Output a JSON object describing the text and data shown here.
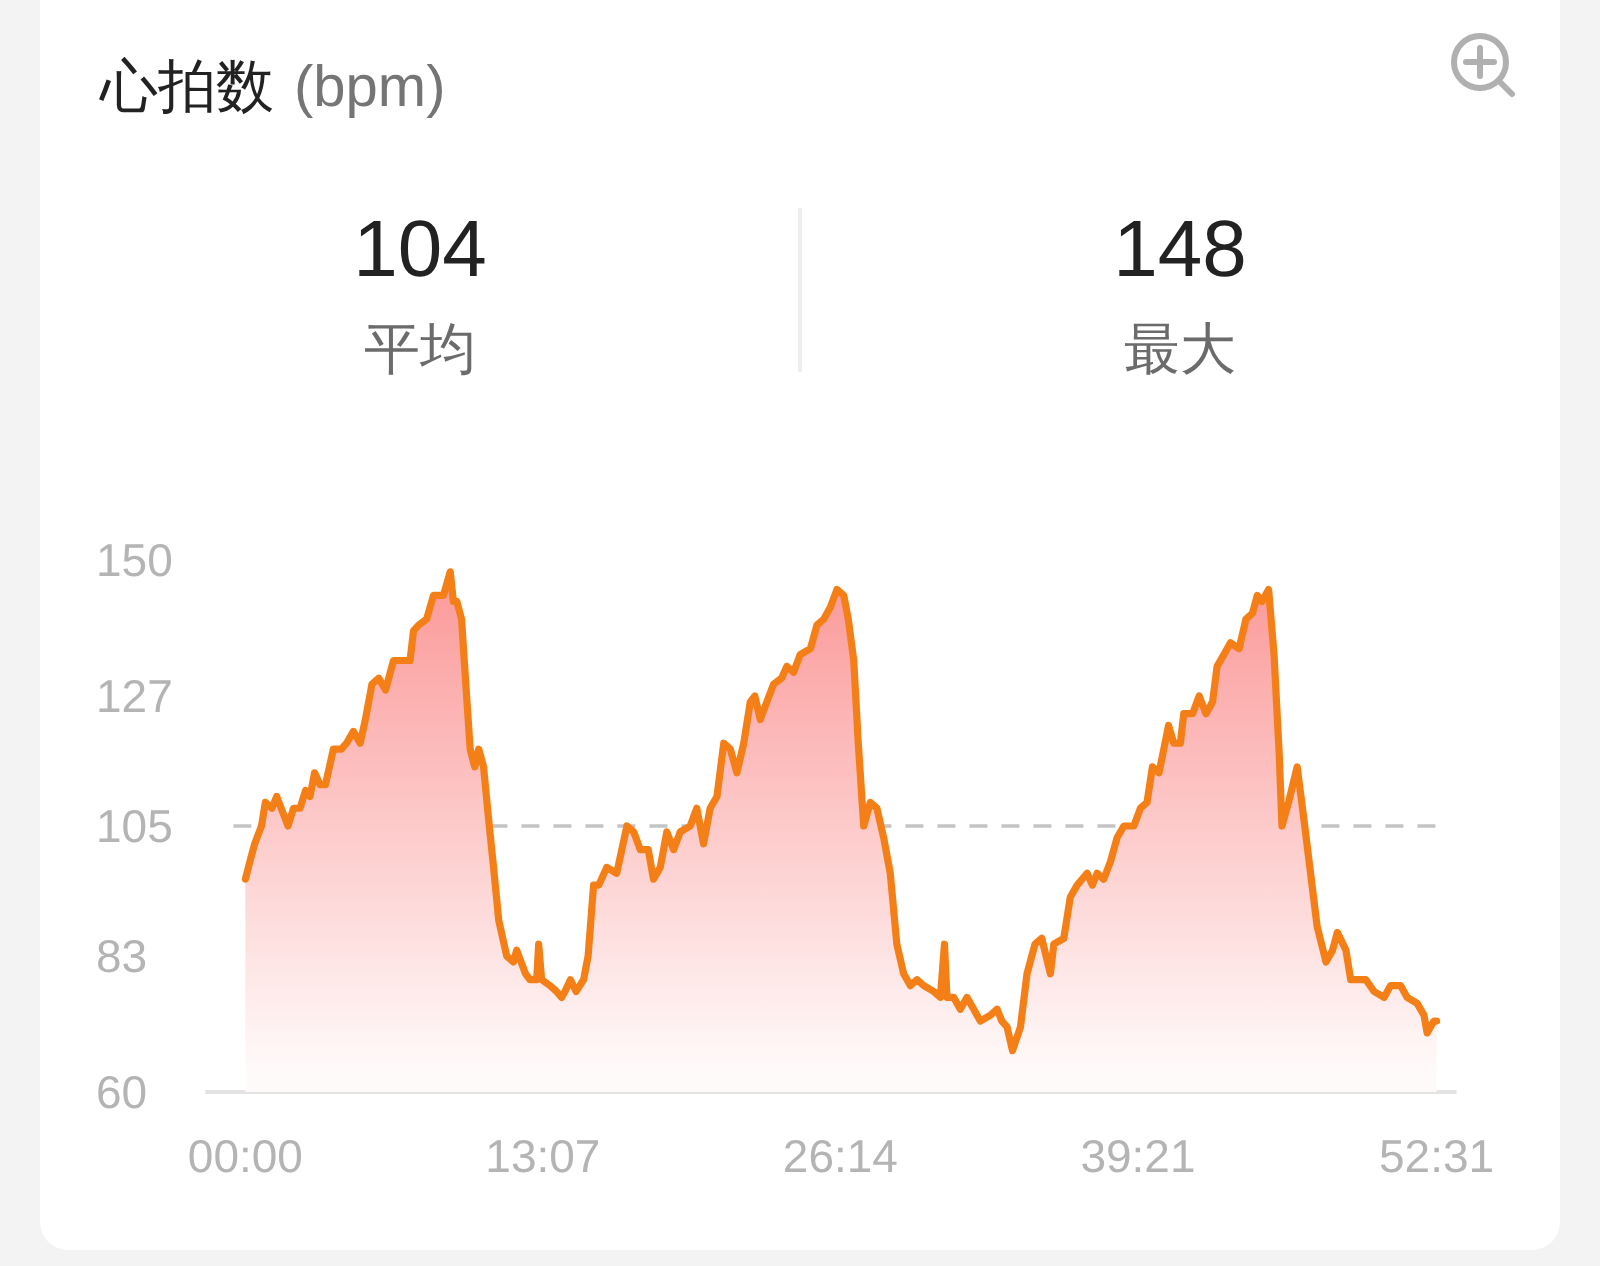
{
  "chart_data": {
    "type": "area",
    "title": "心拍数",
    "subtitle": "(bpm)",
    "annotations": [
      "104",
      "平均",
      "148",
      "最大"
    ],
    "x": [
      0,
      0.2,
      0.41,
      0.71,
      0.88,
      1.17,
      1.38,
      1.68,
      1.88,
      2.12,
      2.41,
      2.65,
      2.85,
      3.05,
      3.29,
      3.53,
      3.88,
      4.23,
      4.46,
      4.76,
      5.06,
      5.29,
      5.58,
      5.88,
      6.18,
      6.53,
      7.26,
      7.41,
      7.64,
      7.99,
      8.29,
      8.73,
      8.88,
      9.03,
      9.17,
      9.32,
      9.53,
      9.7,
      9.91,
      10.11,
      10.29,
      10.5,
      10.7,
      10.94,
      11.17,
      11.52,
      11.82,
      11.96,
      12.35,
      12.55,
      12.84,
      12.93,
      13.06,
      13.43,
      13.72,
      13.94,
      14.09,
      14.33,
      14.58,
      14.91,
      15.11,
      15.35,
      15.58,
      15.93,
      16.37,
      16.82,
      17.12,
      17.41,
      17.76,
      17.99,
      18.29,
      18.58,
      18.88,
      19.17,
      19.61,
      19.9,
      20.2,
      20.49,
      20.79,
      21.09,
      21.38,
      21.67,
      21.97,
      22.26,
      22.46,
      22.7,
      22.99,
      23.29,
      23.64,
      23.87,
      24.17,
      24.46,
      24.91,
      25.2,
      25.5,
      25.79,
      26.08,
      26.38,
      26.58,
      26.82,
      27.02,
      27.26,
      27.55,
      27.84,
      28.14,
      28.43,
      28.72,
      29.02,
      29.32,
      29.61,
      29.91,
      30.35,
      30.64,
      30.82,
      30.93,
      31.23,
      31.52,
      31.81,
      32.11,
      32.4,
      32.85,
      33.14,
      33.35,
      33.58,
      33.82,
      34.17,
      34.46,
      34.81,
      35.11,
      35.49,
      35.64,
      36.08,
      36.37,
      36.67,
      37.11,
      37.34,
      37.55,
      37.84,
      38.14,
      38.43,
      38.73,
      39.17,
      39.46,
      39.75,
      39.99,
      40.28,
      40.49,
      40.7,
      40.93,
      41.22,
      41.37,
      41.76,
      42.05,
      42.35,
      42.64,
      42.84,
      43.14,
      43.43,
      43.81,
      44.11,
      44.4,
      44.61,
      44.82,
      45.11,
      45.35,
      45.58,
      45.7,
      45.99,
      46.37,
      46.67,
      46.96,
      47.25,
      47.64,
      47.93,
      48.14,
      48.52,
      48.73,
      49.02,
      49.4,
      49.76,
      50.2,
      50.49,
      50.93,
      51.22,
      51.66,
      51.96,
      52.1,
      52.4,
      52.517
    ],
    "series": [
      {
        "color": "#f57f17",
        "values": [
          96,
          99,
          102,
          105,
          109,
          108,
          110,
          107,
          105,
          108,
          108,
          111,
          110,
          114,
          112,
          112,
          118,
          118,
          119,
          121,
          119,
          123,
          129,
          130,
          128,
          133,
          133,
          138,
          139,
          140,
          144,
          144,
          146,
          148,
          143,
          143,
          140,
          130,
          118,
          115,
          118,
          115,
          107,
          98,
          89,
          83,
          82,
          84,
          80,
          79,
          79,
          85,
          79,
          78,
          77,
          76,
          77,
          79,
          77,
          79,
          83,
          95,
          95,
          98,
          97,
          105,
          104,
          101,
          101,
          96,
          98,
          104,
          101,
          104,
          105,
          108,
          102,
          108,
          110,
          119,
          118,
          114,
          119,
          126,
          127,
          123,
          126,
          129,
          130,
          132,
          131,
          134,
          135,
          139,
          140,
          142,
          145,
          144,
          140,
          133,
          119,
          105,
          109,
          108,
          103,
          97,
          85,
          80,
          78,
          79,
          78,
          77,
          76,
          85,
          76,
          76,
          74,
          76,
          74,
          72,
          73,
          74,
          72,
          71,
          67,
          71,
          80,
          85,
          86,
          80,
          85,
          86,
          93,
          95,
          97,
          95,
          97,
          96,
          99,
          103,
          105,
          105,
          108,
          109,
          115,
          114,
          118,
          122,
          119,
          119,
          124,
          124,
          127,
          124,
          126,
          132,
          134,
          136,
          135,
          140,
          141,
          144,
          143,
          145,
          134,
          117,
          105,
          109,
          115,
          106,
          97,
          88,
          82,
          84,
          87,
          84,
          79,
          79,
          79,
          77,
          76,
          78,
          78,
          76,
          75,
          73,
          70,
          72,
          72
        ]
      }
    ],
    "xlim": [
      0,
      52.517
    ],
    "xticks": [
      {
        "value": 0,
        "label": "00:00"
      },
      {
        "value": 13.117,
        "label": "13:07"
      },
      {
        "value": 26.233,
        "label": "26:14"
      },
      {
        "value": 39.35,
        "label": "39:21"
      },
      {
        "value": 52.517,
        "label": "52:31"
      }
    ],
    "ylim": [
      60,
      150
    ],
    "yticks": [
      60,
      83,
      105,
      127,
      150
    ],
    "ref_lines": [
      {
        "axis": "y",
        "value": 105,
        "color": "#c4c4c4",
        "line_style": "dashed"
      }
    ]
  }
}
